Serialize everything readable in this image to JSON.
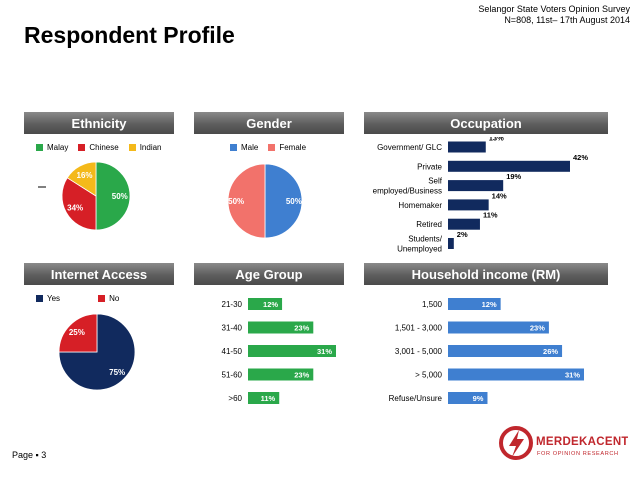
{
  "header": {
    "survey_line1": "Selangor State Voters Opinion Survey",
    "survey_line2": "N=808, 11st– 17th  August 2014",
    "title": "Respondent Profile"
  },
  "footer": {
    "page": "Page ▪ 3"
  },
  "logo": {
    "name": "MERDEKACENTER",
    "tagline": "FOR OPINION RESEARCH",
    "brand_color": "#c0272d"
  },
  "colors": {
    "navy": "#112a5e",
    "green": "#2aa84a",
    "blue": "#3f7fd0",
    "red": "#d61f26",
    "yellow": "#f4b91a",
    "salmon": "#f2726b"
  },
  "panels": {
    "ethnicity": "Ethnicity",
    "gender": "Gender",
    "occupation": "Occupation",
    "internet": "Internet Access",
    "age": "Age Group",
    "income": "Household income (RM)"
  },
  "chart_data": [
    {
      "id": "ethnicity",
      "type": "pie",
      "title": "Ethnicity",
      "legend": [
        "Malay",
        "Chinese",
        "Indian"
      ],
      "slices": [
        {
          "label": "Malay",
          "value": 50,
          "text": "50%",
          "color": "#2aa84a"
        },
        {
          "label": "Chinese",
          "value": 34,
          "text": "34%",
          "color": "#d61f26"
        },
        {
          "label": "Indian",
          "value": 16,
          "text": "16%",
          "color": "#f4b91a"
        }
      ]
    },
    {
      "id": "gender",
      "type": "pie",
      "title": "Gender",
      "legend": [
        "Male",
        "Female"
      ],
      "slices": [
        {
          "label": "Male",
          "value": 50,
          "text": "50%",
          "color": "#3f7fd0"
        },
        {
          "label": "Female",
          "value": 50,
          "text": "50%",
          "color": "#f2726b"
        }
      ]
    },
    {
      "id": "occupation",
      "type": "bar",
      "orientation": "horizontal",
      "title": "Occupation",
      "categories": [
        "Government/ GLC",
        "Private",
        "Self employed/Business",
        "Homemaker",
        "Retired",
        "Students/ Unemployed"
      ],
      "values": [
        13,
        42,
        19,
        14,
        11,
        2
      ],
      "labels": [
        "13%",
        "42%",
        "19%",
        "14%",
        "11%",
        "2%"
      ],
      "xlim": [
        0,
        42
      ],
      "color": "#112a5e"
    },
    {
      "id": "internet",
      "type": "pie",
      "title": "Internet Access",
      "legend": [
        "Yes",
        "No"
      ],
      "slices": [
        {
          "label": "Yes",
          "value": 75,
          "text": "75%",
          "color": "#112a5e"
        },
        {
          "label": "No",
          "value": 25,
          "text": "25%",
          "color": "#d61f26"
        }
      ]
    },
    {
      "id": "age",
      "type": "bar",
      "orientation": "horizontal",
      "title": "Age Group",
      "categories": [
        "21-30",
        "31-40",
        "41-50",
        "51-60",
        ">60"
      ],
      "values": [
        12,
        23,
        31,
        23,
        11
      ],
      "labels": [
        "12%",
        "23%",
        "31%",
        "23%",
        "11%"
      ],
      "xlim": [
        0,
        31
      ],
      "color": "#2aa84a"
    },
    {
      "id": "income",
      "type": "bar",
      "orientation": "horizontal",
      "title": "Household income (RM)",
      "categories": [
        "1,500",
        "1,501 - 3,000",
        "3,001 - 5,000",
        "> 5,000",
        "Refuse/Unsure"
      ],
      "values": [
        12,
        23,
        26,
        31,
        9
      ],
      "labels": [
        "12%",
        "23%",
        "26%",
        "31%",
        "9%"
      ],
      "xlim": [
        0,
        31
      ],
      "color": "#3f7fd0"
    }
  ]
}
